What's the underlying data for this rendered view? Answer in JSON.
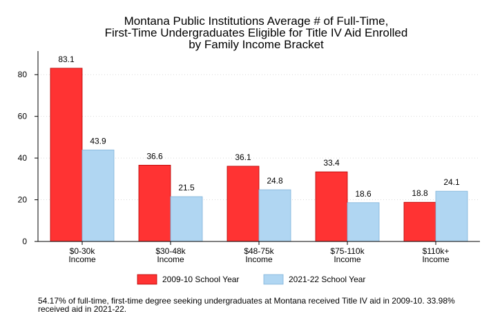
{
  "chart_data": {
    "type": "bar",
    "title_lines": [
      "Montana Public Institutions Average # of Full-Time,",
      "First-Time Undergraduates Eligible for Title IV Aid Enrolled",
      "by Family Income Bracket"
    ],
    "categories": [
      [
        "$0-30k",
        "Income"
      ],
      [
        "$30-48k",
        "Income"
      ],
      [
        "$48-75k",
        "Income"
      ],
      [
        "$75-110k",
        "Income"
      ],
      [
        "$110k+",
        "Income"
      ]
    ],
    "series": [
      {
        "name": "2009-10 School Year",
        "color": "#ff3333",
        "stroke": "#b30000",
        "values": [
          83.1,
          36.6,
          36.1,
          33.4,
          18.8
        ]
      },
      {
        "name": "2021-22 School Year",
        "color": "#b0d6f2",
        "stroke": "#7fb3d9",
        "values": [
          43.9,
          21.5,
          24.8,
          18.6,
          24.1
        ]
      }
    ],
    "ylim": [
      0,
      90
    ],
    "yticks": [
      0,
      20,
      40,
      60,
      80
    ],
    "grid": true,
    "legend_position": "bottom"
  },
  "footnote": "54.17% of full-time, first-time degree seeking undergraduates at Montana received Title IV aid in 2009-10. 33.98% received aid in 2021-22."
}
